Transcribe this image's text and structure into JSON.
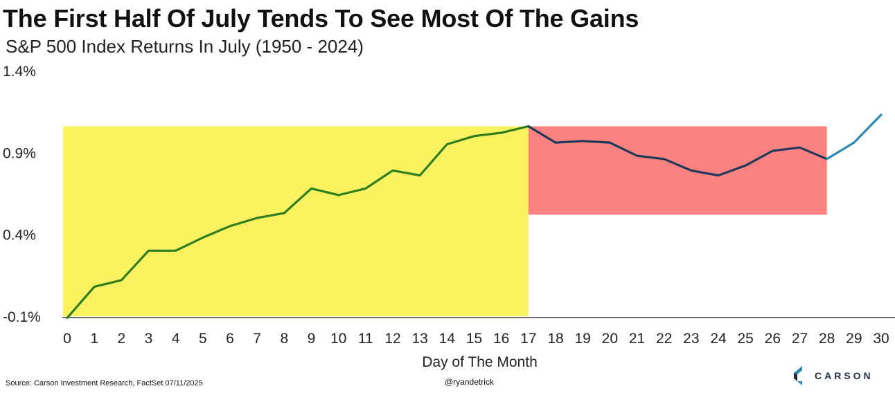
{
  "chart_data": {
    "type": "line",
    "title": "The First Half Of July Tends To See Most Of The Gains",
    "subtitle": "S&P 500 Index Returns In July (1950 - 2024)",
    "xlabel": "Day of The Month",
    "ylabel": "",
    "x": [
      0,
      1,
      2,
      3,
      4,
      5,
      6,
      7,
      8,
      9,
      10,
      11,
      12,
      13,
      14,
      15,
      16,
      17,
      18,
      19,
      20,
      21,
      22,
      23,
      24,
      25,
      26,
      27,
      28,
      29,
      30
    ],
    "y": [
      -0.11,
      0.08,
      0.12,
      0.3,
      0.3,
      0.38,
      0.45,
      0.5,
      0.53,
      0.68,
      0.64,
      0.68,
      0.79,
      0.76,
      0.95,
      1.0,
      1.02,
      1.06,
      0.96,
      0.97,
      0.96,
      0.88,
      0.86,
      0.79,
      0.76,
      0.82,
      0.91,
      0.93,
      0.86,
      0.96,
      1.13
    ],
    "ylim": [
      -0.1,
      1.4
    ],
    "yticks": [
      -0.1,
      0.4,
      0.9,
      1.4
    ],
    "ytick_labels": [
      "-0.1%",
      "0.4%",
      "0.9%",
      "1.4%"
    ],
    "xticks": [
      0,
      1,
      2,
      3,
      4,
      5,
      6,
      7,
      8,
      9,
      10,
      11,
      12,
      13,
      14,
      15,
      16,
      17,
      18,
      19,
      20,
      21,
      22,
      23,
      24,
      25,
      26,
      27,
      28,
      29,
      30
    ],
    "baseline": -0.1,
    "grid": false,
    "legend": "none",
    "highlight_regions": [
      {
        "x_start": 0,
        "x_end": 17,
        "y_start": -0.1,
        "y_end": 1.06,
        "color": "#fbf25f",
        "line_color": "#2e7d1f"
      },
      {
        "x_start": 17,
        "x_end": 28,
        "y_start": 0.52,
        "y_end": 1.06,
        "color": "#fc8181",
        "line_color": "#1e3a5a"
      }
    ],
    "tail_line_color": "#2a8ab7"
  },
  "footer": {
    "source": "Source: Carson Investment Research, FactSet 07/11/2025",
    "handle": "@ryandetrick",
    "brand": "CARSON"
  },
  "colors": {
    "brand_dark": "#1e2e3e",
    "brand_blue": "#2a8ab7"
  }
}
